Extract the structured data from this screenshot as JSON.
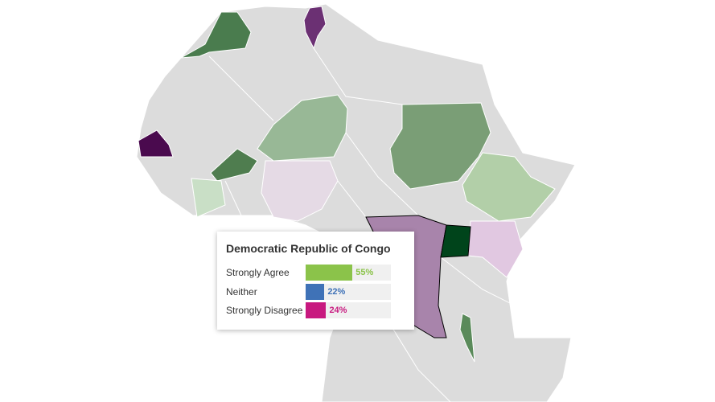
{
  "tooltip": {
    "title": "Democratic Republic of Congo",
    "categories": [
      "Strongly Agree",
      "Neither",
      "Strongly Disagree"
    ],
    "values": [
      55,
      22,
      24
    ],
    "value_labels": [
      "55%",
      "22%",
      "24%"
    ],
    "colors": [
      "#8bc34a",
      "#3f72b7",
      "#c8197f"
    ],
    "xlim": [
      0,
      100
    ]
  }
}
